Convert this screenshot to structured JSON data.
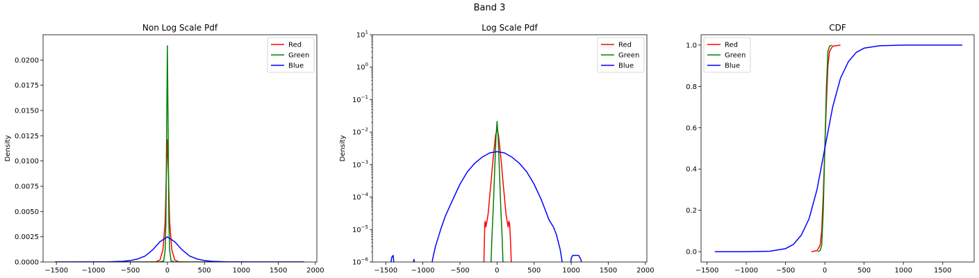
{
  "figure": {
    "title": "Band 3"
  },
  "chart_data": [
    {
      "type": "line",
      "title": "Non Log Scale Pdf",
      "xlabel": "",
      "ylabel": "Density",
      "xlim": [
        -1680,
        2020
      ],
      "ylim": [
        0,
        0.0225
      ],
      "yscale": "linear",
      "xticks": [
        -1500,
        -1000,
        -500,
        0,
        500,
        1000,
        1500,
        2000
      ],
      "xtick_labels": [
        "−1500",
        "−1000",
        "−500",
        "0",
        "500",
        "1000",
        "1500",
        "2000"
      ],
      "yticks": [
        0,
        0.0025,
        0.005,
        0.0075,
        0.01,
        0.0125,
        0.015,
        0.0175,
        0.02
      ],
      "ytick_labels": [
        "0.0000",
        "0.0025",
        "0.0050",
        "0.0075",
        "0.0100",
        "0.0125",
        "0.0150",
        "0.0175",
        "0.0200"
      ],
      "grid": false,
      "legend": "top-right",
      "series": [
        {
          "name": "Red",
          "color": "#ff0000",
          "x": [
            -1520,
            -300,
            -150,
            -100,
            -60,
            -30,
            -15,
            0,
            15,
            30,
            60,
            100,
            150,
            300,
            1850
          ],
          "y": [
            0,
            0,
            3e-05,
            0.0002,
            0.0012,
            0.004,
            0.0085,
            0.0121,
            0.0085,
            0.004,
            0.0012,
            0.0002,
            3e-05,
            0,
            0
          ]
        },
        {
          "name": "Green",
          "color": "#008000",
          "x": [
            -1520,
            -100,
            -50,
            -30,
            -20,
            -10,
            0,
            10,
            20,
            30,
            50,
            100,
            1850
          ],
          "y": [
            0,
            0,
            0.0001,
            0.0012,
            0.004,
            0.013,
            0.0214,
            0.013,
            0.004,
            0.0012,
            0.0001,
            0,
            0
          ]
        },
        {
          "name": "Blue",
          "color": "#0000ff",
          "x": [
            -1520,
            -1000,
            -800,
            -600,
            -500,
            -400,
            -300,
            -200,
            -100,
            0,
            100,
            200,
            300,
            400,
            500,
            600,
            800,
            1000,
            1500,
            1850
          ],
          "y": [
            0,
            5e-06,
            2e-05,
            7e-05,
            0.00015,
            0.0003,
            0.0006,
            0.0012,
            0.002,
            0.0025,
            0.002,
            0.0012,
            0.0006,
            0.0003,
            0.00015,
            7e-05,
            2e-05,
            5e-06,
            0,
            0
          ]
        }
      ]
    },
    {
      "type": "line",
      "title": "Log Scale Pdf",
      "xlabel": "",
      "ylabel": "Density",
      "xlim": [
        -1680,
        2020
      ],
      "ylim": [
        1e-06,
        10
      ],
      "yscale": "log",
      "xticks": [
        -1500,
        -1000,
        -500,
        0,
        500,
        1000,
        1500,
        2000
      ],
      "xtick_labels": [
        "−1500",
        "−1000",
        "−500",
        "0",
        "500",
        "1000",
        "1500",
        "2000"
      ],
      "yticks": [
        1e-06,
        1e-05,
        0.0001,
        0.001,
        0.01,
        0.1,
        1,
        10
      ],
      "ytick_labels": [
        {
          "base": "10",
          "exp": "−6"
        },
        {
          "base": "10",
          "exp": "−5"
        },
        {
          "base": "10",
          "exp": "−4"
        },
        {
          "base": "10",
          "exp": "−3"
        },
        {
          "base": "10",
          "exp": "−2"
        },
        {
          "base": "10",
          "exp": "−1"
        },
        {
          "base": "10",
          "exp": "0"
        },
        {
          "base": "10",
          "exp": "1"
        }
      ],
      "grid": false,
      "legend": "top-right",
      "series": [
        {
          "name": "Red",
          "color": "#ff0000",
          "x": [
            -180,
            -165,
            -160,
            -150,
            -140,
            -120,
            -100,
            -80,
            -60,
            -40,
            -20,
            0,
            20,
            40,
            60,
            80,
            100,
            120,
            140,
            150,
            160,
            170,
            185,
            195
          ],
          "y": [
            5e-07,
            1.5e-05,
            1.8e-05,
            1.2e-05,
            1.6e-05,
            3e-05,
            0.0001,
            0.0003,
            0.001,
            0.003,
            0.008,
            0.0121,
            0.008,
            0.003,
            0.001,
            0.0003,
            0.0001,
            3e-05,
            1.6e-05,
            1.2e-05,
            1.8e-05,
            1.5e-05,
            3e-06,
            5e-07
          ]
        },
        {
          "name": "Green",
          "color": "#008000",
          "x": [
            -85,
            -70,
            -50,
            -30,
            -15,
            0,
            15,
            30,
            50,
            70,
            85
          ],
          "y": [
            5e-07,
            5e-06,
            5e-05,
            0.0008,
            0.007,
            0.0214,
            0.007,
            0.0008,
            5e-05,
            5e-06,
            5e-07
          ]
        },
        {
          "name": "Blue",
          "color": "#0000ff",
          "x": [
            -1450,
            -1420,
            -1400,
            -1380,
            -1150,
            -1120,
            -1100,
            -1050,
            -1000,
            -950,
            -900,
            -860,
            -830,
            -800,
            -760,
            -700,
            -600,
            -500,
            -400,
            -300,
            -200,
            -100,
            0,
            100,
            200,
            300,
            400,
            500,
            600,
            700,
            760,
            800,
            850,
            900,
            950,
            980,
            1000,
            1020,
            1050,
            1100,
            1130,
            1160
          ],
          "y": [
            5e-07,
            1.4e-06,
            1.6e-06,
            5e-07,
            5e-07,
            1.2e-06,
            5e-07,
            5e-07,
            5e-07,
            5e-07,
            5e-07,
            1.5e-06,
            3e-06,
            5e-06,
            1e-05,
            2.5e-05,
            8e-05,
            0.00025,
            0.0006,
            0.0011,
            0.0017,
            0.0023,
            0.0025,
            0.0023,
            0.0017,
            0.0011,
            0.0006,
            0.00025,
            8e-05,
            2e-05,
            1.2e-05,
            7e-06,
            2.5e-06,
            5e-07,
            5e-07,
            5e-07,
            1.3e-06,
            1.6e-06,
            1.6e-06,
            1.6e-06,
            1.2e-06,
            5e-07
          ]
        }
      ]
    },
    {
      "type": "line",
      "title": "CDF",
      "xlabel": "",
      "ylabel": "",
      "xlim": [
        -1575,
        1900
      ],
      "ylim": [
        -0.05,
        1.05
      ],
      "yscale": "linear",
      "xticks": [
        -1500,
        -1000,
        -500,
        0,
        500,
        1000,
        1500
      ],
      "xtick_labels": [
        "−1500",
        "−1000",
        "−500",
        "0",
        "500",
        "1000",
        "1500"
      ],
      "yticks": [
        0,
        0.2,
        0.4,
        0.6,
        0.8,
        1.0
      ],
      "ytick_labels": [
        "0.0",
        "0.2",
        "0.4",
        "0.6",
        "0.8",
        "1.0"
      ],
      "grid": false,
      "legend": "top-left",
      "series": [
        {
          "name": "Red",
          "color": "#ff0000",
          "x": [
            -170,
            -100,
            -60,
            -40,
            -20,
            0,
            20,
            40,
            60,
            100,
            200
          ],
          "y": [
            0,
            0.005,
            0.03,
            0.1,
            0.28,
            0.5,
            0.72,
            0.9,
            0.97,
            0.995,
            1.0
          ]
        },
        {
          "name": "Green",
          "color": "#008000",
          "x": [
            -90,
            -60,
            -40,
            -20,
            -10,
            0,
            10,
            20,
            40,
            60,
            90
          ],
          "y": [
            0,
            0.005,
            0.03,
            0.2,
            0.35,
            0.5,
            0.65,
            0.8,
            0.97,
            0.995,
            1.0
          ]
        },
        {
          "name": "Blue",
          "color": "#0000ff",
          "x": [
            -1400,
            -1000,
            -700,
            -500,
            -400,
            -300,
            -200,
            -100,
            0,
            100,
            200,
            300,
            400,
            500,
            700,
            1000,
            1400,
            1750
          ],
          "y": [
            0,
            0,
            0.002,
            0.015,
            0.035,
            0.08,
            0.16,
            0.3,
            0.5,
            0.7,
            0.84,
            0.92,
            0.965,
            0.985,
            0.997,
            1.0,
            1.0,
            1.0
          ]
        }
      ]
    }
  ]
}
